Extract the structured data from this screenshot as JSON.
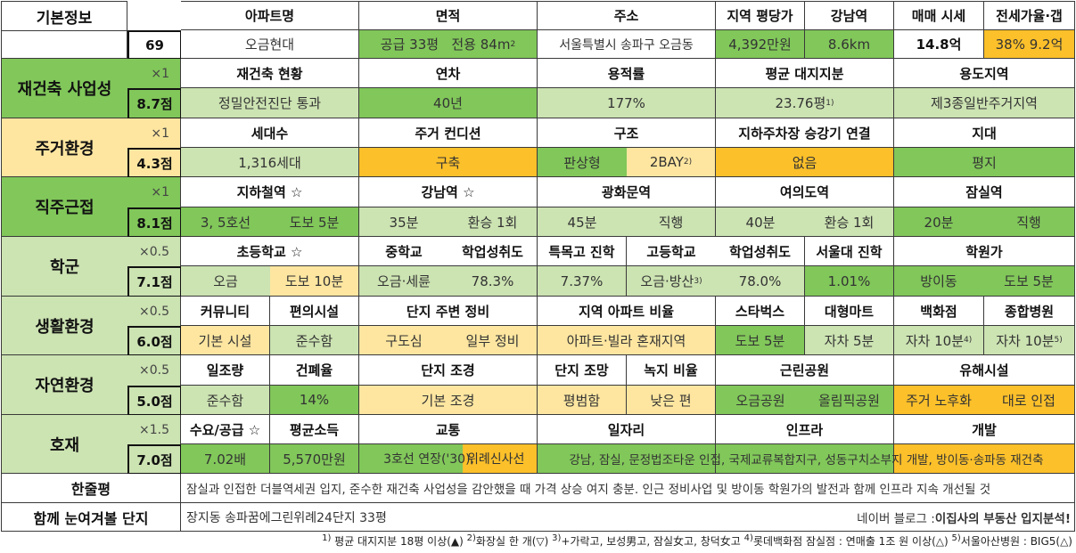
{
  "colors": {
    "dark_green": "#81c75a",
    "light_green": "#cce3b2",
    "amber": "#fcc02a",
    "light_amber": "#fee6a0",
    "white": "#ffffff"
  },
  "basic": {
    "label": "기본정보",
    "id": "69",
    "headers": {
      "apt": "아파트명",
      "area": "면적",
      "addr": "주소",
      "price_pyeong": "지역 평당가",
      "gangnam": "강남역",
      "sale": "매매 시세",
      "jeonse": "전세가율·갭"
    },
    "values": {
      "apt": "오금현대",
      "area_supply": "공급 33평",
      "area_exclusive": "전용 84m",
      "area_sup": "2",
      "addr": "서울특별시 송파구 오금동",
      "price_pyeong": "4,392만원",
      "gangnam": "8.6km",
      "sale": "14.8억",
      "jeonse": "38%  9.2억"
    }
  },
  "rows": {
    "redev": {
      "label": "재건축 사업성",
      "mult": "×1",
      "score": "8.7점",
      "h": {
        "status": "재건축 현황",
        "age": "연차",
        "far": "용적률",
        "land": "평균 대지지분",
        "zone": "용도지역"
      },
      "v": {
        "status": "정밀안전진단 통과",
        "age": "40년",
        "far": "177%",
        "land": "23.76평",
        "land_sup": "1)",
        "zone": "제3종일반주거지역"
      }
    },
    "living": {
      "label": "주거환경",
      "mult": "×1",
      "score": "4.3점",
      "h": {
        "households": "세대수",
        "condition": "주거 컨디션",
        "structure": "구조",
        "parking": "지하주차장  승강기 연결",
        "terrain": "지대"
      },
      "v": {
        "households": "1,316세대",
        "condition": "구축",
        "type": "판상형",
        "bay": "2BAY",
        "bay_sup": "2)",
        "parking": "없음",
        "terrain": "평지"
      }
    },
    "commute": {
      "label": "직주근접",
      "mult": "×1",
      "score": "8.1점",
      "h": {
        "subway": "지하철역 ☆",
        "gangnam": "강남역 ☆",
        "gwanghwamun": "광화문역",
        "yeouido": "여의도역",
        "jamsil": "잠실역"
      },
      "v": {
        "lines": "3, 5호선",
        "walk": "도보 5분",
        "gn_time": "35분",
        "gn_transfer": "환승 1회",
        "gh_time": "45분",
        "gh_transfer": "직행",
        "yd_time": "40분",
        "yd_transfer": "환승 1회",
        "js_time": "20분",
        "js_transfer": "직행"
      }
    },
    "school": {
      "label": "학군",
      "mult": "×0.5",
      "score": "7.1점",
      "h": {
        "elem": "초등학교 ☆",
        "mid": "중학교",
        "mid_rate": "학업성취도",
        "special": "특목고 진학",
        "high": "고등학교",
        "high_rate": "학업성취도",
        "snu": "서울대 진학",
        "academy": "학원가"
      },
      "v": {
        "elem": "오금",
        "elem_walk": "도보 10분",
        "mid": "오금·세륜",
        "mid_rate": "78.3%",
        "special": "7.37%",
        "high": "오금·방산",
        "high_sup": "3)",
        "high_rate": "78.0%",
        "snu": "1.01%",
        "academy": "방이동",
        "academy_walk": "도보 5분"
      }
    },
    "life": {
      "label": "생활환경",
      "mult": "×0.5",
      "score": "6.0점",
      "h": {
        "community": "커뮤니티",
        "convenience": "편의시설",
        "surround": "단지 주변 정비",
        "ratio": "지역 아파트 비율",
        "starbucks": "스타벅스",
        "mart": "대형마트",
        "dept": "백화점",
        "hospital": "종합병원"
      },
      "v": {
        "community": "기본 시설",
        "convenience": "준수함",
        "surround_a": "구도심",
        "surround_b": "일부 정비",
        "ratio": "아파트·빌라 혼재지역",
        "starbucks": "도보 5분",
        "mart": "자차 5분",
        "dept": "자차 10분",
        "dept_sup": "4)",
        "hospital": "자차 10분",
        "hospital_sup": "5)"
      }
    },
    "nature": {
      "label": "자연환경",
      "mult": "×0.5",
      "score": "5.0점",
      "h": {
        "sunlight": "일조량",
        "coverage": "건폐율",
        "landscape": "단지 조경",
        "view": "단지 조망",
        "green": "녹지 비율",
        "park": "근린공원",
        "harmful": "유해시설"
      },
      "v": {
        "sunlight": "준수함",
        "coverage": "14%",
        "landscape": "기본 조경",
        "view": "평범함",
        "green": "낮은 편",
        "park_a": "오금공원",
        "park_b": "올림픽공원",
        "harmful_a": "주거 노후화",
        "harmful_b": "대로 인접"
      }
    },
    "dev": {
      "label": "호재",
      "mult": "×1.5",
      "score": "7.0점",
      "h": {
        "supply": "수요/공급 ☆",
        "income": "평균소득",
        "traffic": "교통",
        "jobs": "일자리",
        "infra": "인프라",
        "development": "개발"
      },
      "v": {
        "supply": "7.02배",
        "income": "5,570만원",
        "traffic_a": "3호선 연장('30),",
        "traffic_b": "위례신사선",
        "jobs": "강남, 잠실, 문정법조타운 인접, 국제교류복합지구, 성동구치소부지 개발, 방이동·송파동 재건축"
      }
    }
  },
  "summary": {
    "label": "한줄평",
    "text": "잠실과 인접한 더블역세권 입지, 준수한 재건축 사업성을 감안했을 때 가격 상승 여지 충분. 인근 정비사업 및 방이동 학원가의 발전과 함께 인프라 지속 개선될 것"
  },
  "related": {
    "label": "함께 눈여겨볼 단지",
    "text": "장지동 송파꿈에그린위례24단지 33평",
    "blog_prefix": "네이버 블로그 : ",
    "blog_name": "이집사의 부동산 입지분석!"
  },
  "footnotes": [
    {
      "sup": "1)",
      "text": " 평균 대지지분 18평 이상(▲)  "
    },
    {
      "sup": "2)",
      "text": "화장실 한 개(▽)  "
    },
    {
      "sup": "3)",
      "text": "+가락고, 보성男고, 잠실女고, 창덕女고  "
    },
    {
      "sup": "4)",
      "text": "롯데백화점 잠실점 : 연매출 1조 원 이상(△)  "
    },
    {
      "sup": "5)",
      "text": "서울아산병원 : BIG5(△)"
    }
  ]
}
